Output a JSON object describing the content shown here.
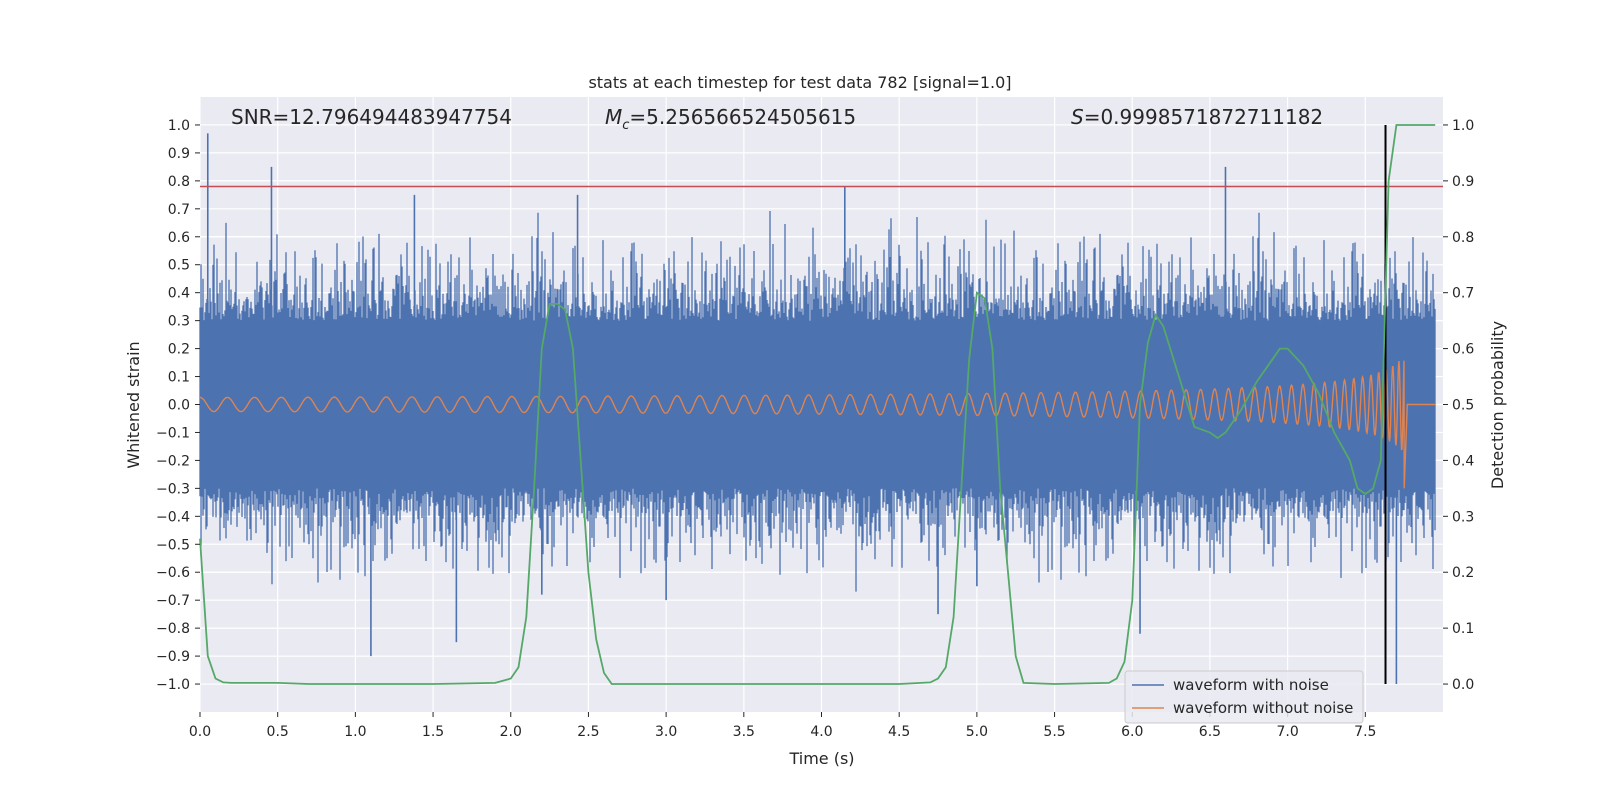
{
  "chart_data": {
    "type": "line",
    "title": "stats at each timestep for test data 782 [signal=1.0]",
    "xlabel": "Time (s)",
    "ylabel_left": "Whitened strain",
    "ylabel_right": "Detection probability",
    "xlim": [
      0.0,
      8.0
    ],
    "ylim_left": [
      -1.1,
      1.1
    ],
    "ylim_right": [
      -0.05,
      1.05
    ],
    "xticks": [
      "0.0",
      "0.5",
      "1.0",
      "1.5",
      "2.0",
      "2.5",
      "3.0",
      "3.5",
      "4.0",
      "4.5",
      "5.0",
      "5.5",
      "6.0",
      "6.5",
      "7.0",
      "7.5"
    ],
    "yticks_left": [
      "1.0",
      "0.9",
      "0.8",
      "0.7",
      "0.6",
      "0.5",
      "0.4",
      "0.3",
      "0.2",
      "0.1",
      "0.0",
      "−0.1",
      "−0.2",
      "−0.3",
      "−0.4",
      "−0.5",
      "−0.6",
      "−0.7",
      "−0.8",
      "−0.9",
      "−1.0"
    ],
    "yticks_right": [
      "1.0",
      "0.9",
      "0.8",
      "0.7",
      "0.6",
      "0.5",
      "0.4",
      "0.3",
      "0.2",
      "0.1",
      "0.0"
    ],
    "grid": true,
    "legend_position": "lower-right",
    "annotations": {
      "snr": "SNR=12.796494483947754",
      "mc_symbol": "M",
      "mc_sub": "c",
      "mc_value": "=5.256566524505615",
      "s_symbol": "S",
      "s_value": "=0.9998571872711182"
    },
    "threshold_line": {
      "y": 0.78,
      "color": "#c44e52"
    },
    "vertical_marker": {
      "x": 7.63,
      "color": "#000000"
    },
    "series": [
      {
        "name": "waveform with noise",
        "color": "#4c72b0",
        "axis": "left",
        "spikes": [
          [
            0.05,
            0.97
          ],
          [
            0.46,
            0.85
          ],
          [
            1.38,
            0.75
          ],
          [
            2.43,
            0.75
          ],
          [
            4.15,
            0.78
          ],
          [
            6.6,
            0.85
          ],
          [
            1.1,
            -0.9
          ],
          [
            1.65,
            -0.85
          ],
          [
            4.75,
            -0.75
          ],
          [
            6.05,
            -0.82
          ],
          [
            7.7,
            -1.0
          ],
          [
            3.0,
            -0.7
          ],
          [
            5.0,
            -0.65
          ],
          [
            2.2,
            -0.68
          ]
        ]
      },
      {
        "name": "waveform without noise",
        "color": "#dd8452",
        "axis": "left",
        "chirp": {
          "start": 0.0,
          "end": 7.75,
          "amp_start": 0.025,
          "amp_peak": 0.22,
          "amp_low_peak": -0.3
        }
      },
      {
        "name": "detection probability",
        "color": "#55a868",
        "axis": "right",
        "x": [
          0.0,
          0.05,
          0.1,
          0.15,
          0.2,
          0.3,
          0.5,
          0.7,
          1.0,
          1.5,
          1.9,
          2.0,
          2.05,
          2.1,
          2.15,
          2.2,
          2.25,
          2.3,
          2.35,
          2.4,
          2.45,
          2.5,
          2.55,
          2.6,
          2.65,
          3.0,
          3.5,
          4.0,
          4.5,
          4.7,
          4.75,
          4.8,
          4.85,
          4.9,
          4.95,
          5.0,
          5.05,
          5.1,
          5.15,
          5.2,
          5.25,
          5.3,
          5.5,
          5.85,
          5.9,
          5.95,
          6.0,
          6.05,
          6.1,
          6.15,
          6.2,
          6.3,
          6.4,
          6.5,
          6.55,
          6.6,
          6.7,
          6.8,
          6.9,
          6.95,
          7.0,
          7.1,
          7.2,
          7.3,
          7.4,
          7.45,
          7.5,
          7.55,
          7.6,
          7.65,
          7.7,
          7.8,
          8.0
        ],
        "values": [
          0.26,
          0.05,
          0.01,
          0.003,
          0.002,
          0.002,
          0.002,
          0.0,
          0.0,
          0.0,
          0.002,
          0.01,
          0.03,
          0.12,
          0.35,
          0.6,
          0.68,
          0.68,
          0.67,
          0.6,
          0.4,
          0.2,
          0.08,
          0.02,
          0.0,
          0.0,
          0.0,
          0.0,
          0.0,
          0.003,
          0.01,
          0.03,
          0.12,
          0.35,
          0.58,
          0.7,
          0.69,
          0.6,
          0.35,
          0.2,
          0.05,
          0.002,
          0.0,
          0.002,
          0.01,
          0.04,
          0.15,
          0.5,
          0.61,
          0.66,
          0.64,
          0.55,
          0.46,
          0.45,
          0.44,
          0.45,
          0.49,
          0.54,
          0.58,
          0.6,
          0.6,
          0.57,
          0.52,
          0.45,
          0.4,
          0.35,
          0.34,
          0.35,
          0.4,
          0.9,
          1.0,
          1.0,
          1.0
        ]
      }
    ]
  }
}
